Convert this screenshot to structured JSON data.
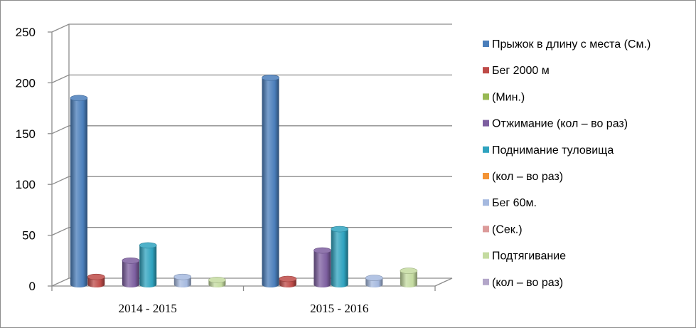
{
  "chart_data": {
    "type": "bar",
    "title": "",
    "xlabel": "",
    "ylabel": "",
    "categories": [
      "2014 - 2015",
      "2015 - 2016"
    ],
    "ylim": [
      0,
      250
    ],
    "yticks": [
      0,
      50,
      100,
      150,
      200,
      250
    ],
    "grid": true,
    "legend_position": "right",
    "series": [
      {
        "name": "Прыжок в длину с места  (См.)",
        "color": "#4a7ebb",
        "values": [
          185,
          205
        ]
      },
      {
        "name": "Бег 2000 м",
        "color": "#be4b48",
        "values": [
          9,
          7
        ]
      },
      {
        "name": "(Мин.)",
        "color": "#98b954",
        "values": [
          0,
          0
        ]
      },
      {
        "name": " Отжимание  (кол – во раз)",
        "color": "#7d5fa0",
        "values": [
          25,
          35
        ]
      },
      {
        "name": "Поднимание туловища",
        "color": "#2fa3bf",
        "values": [
          40,
          56
        ]
      },
      {
        "name": " (кол – во раз)",
        "color": "#f39335",
        "values": [
          0,
          0
        ]
      },
      {
        "name": "Бег 60м.",
        "color": "#a5b9df",
        "values": [
          9,
          8
        ]
      },
      {
        "name": "(Сек.)",
        "color": "#dc9b9a",
        "values": [
          0,
          0
        ]
      },
      {
        "name": "Подтягивание",
        "color": "#c4dba0",
        "values": [
          6,
          15
        ]
      },
      {
        "name": "(кол – во  раз)",
        "color": "#b3a6c9",
        "values": [
          0,
          0
        ]
      }
    ]
  }
}
